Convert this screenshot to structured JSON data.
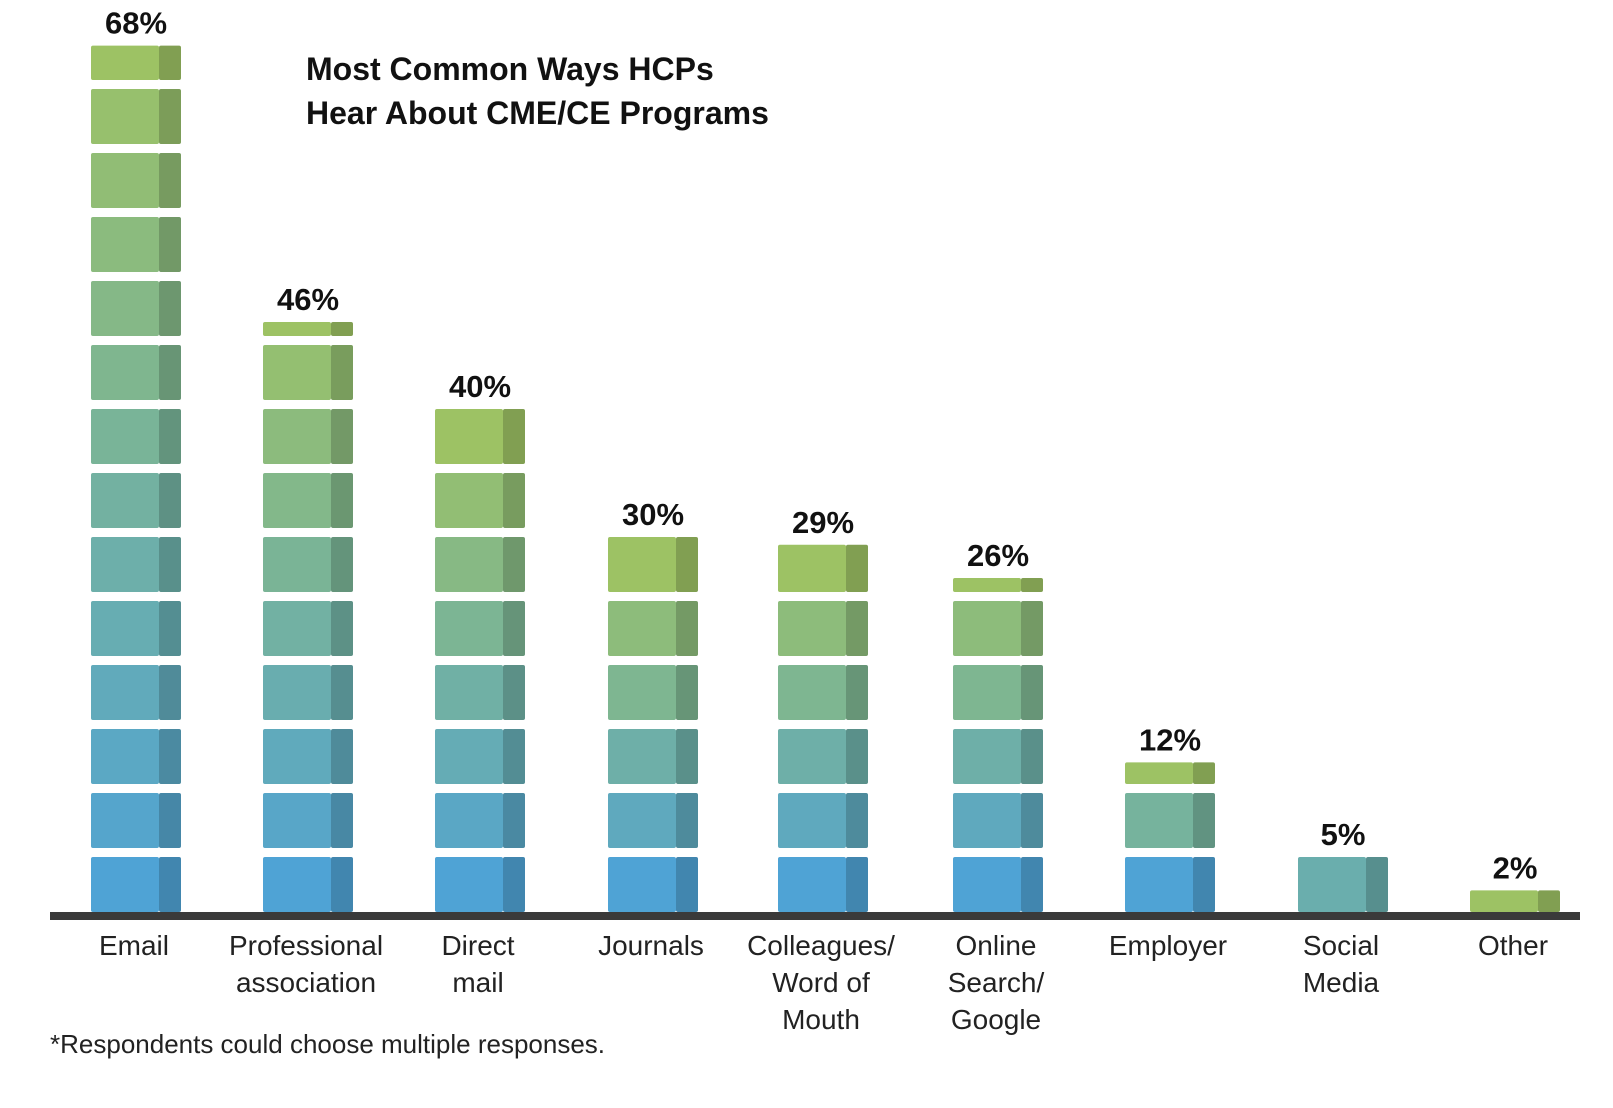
{
  "chart_data": {
    "type": "bar",
    "title_lines": [
      "Most Common Ways HCPs",
      "Hear About CME/CE Programs"
    ],
    "categories": [
      [
        "Email"
      ],
      [
        "Professional",
        "association"
      ],
      [
        "Direct",
        "mail"
      ],
      [
        "Journals"
      ],
      [
        "Colleagues/",
        "Word of",
        "Mouth"
      ],
      [
        "Online",
        "Search/",
        "Google"
      ],
      [
        "Employer"
      ],
      [
        "Social",
        "Media"
      ],
      [
        "Other"
      ]
    ],
    "values": [
      68,
      46,
      40,
      30,
      29,
      26,
      12,
      5,
      2
    ],
    "value_labels": [
      "68%",
      "46%",
      "40%",
      "30%",
      "29%",
      "26%",
      "12%",
      "5%",
      "2%"
    ],
    "ylim": [
      0,
      70
    ],
    "footnote": "*Respondents could choose multiple responses.",
    "colors": {
      "top": "#9dc264",
      "bottom": "#4fa3d5",
      "baseline": "#3a3a3a",
      "text": "#111111"
    },
    "grid": false,
    "legend": "none"
  }
}
